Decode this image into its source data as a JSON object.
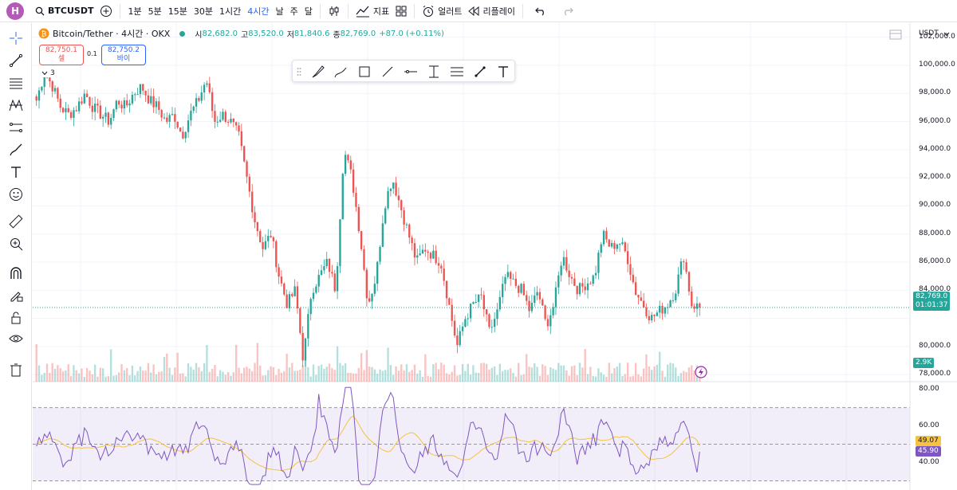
{
  "topbar": {
    "avatar_letter": "H",
    "symbol": "BTCUSDT",
    "intervals": [
      "1분",
      "5분",
      "15분",
      "30분",
      "1시간",
      "4시간",
      "날",
      "주",
      "달"
    ],
    "active_interval": "4시간",
    "indicators_label": "지표",
    "alert_label": "얼러트",
    "replay_label": "리플레이"
  },
  "legend": {
    "title": "Bitcoin/Tether · 4시간 · OKX",
    "open_label": "시",
    "open": "82,682.0",
    "high_label": "고",
    "high": "83,520.0",
    "low_label": "저",
    "low": "81,840.6",
    "close_label": "종",
    "close": "82,769.0",
    "change": "+87.0 (+0.11%)",
    "sell_price": "82,750.1",
    "sell_label": "셀",
    "spread": "0.1",
    "buy_price": "82,750.2",
    "buy_label": "바이",
    "collapse_count": "3"
  },
  "price_axis": {
    "currency": "USDT",
    "labels": [
      "102,000.0",
      "100,000.0",
      "98,000.0",
      "96,000.0",
      "94,000.0",
      "92,000.0",
      "90,000.0",
      "88,000.0",
      "86,000.0",
      "84,000.0",
      "80,000.0",
      "78,000.0"
    ],
    "current_price": "82,769.0",
    "countdown": "01:01:37",
    "volume_tag": "2.9K"
  },
  "rsi_axis": {
    "labels": [
      "80.00",
      "60.00",
      "40.00"
    ],
    "rsi_ma_value": "49.07",
    "rsi_value": "45.90"
  },
  "colors": {
    "up": "#26a69a",
    "down": "#ef5350",
    "rsi_line": "#7e57c2",
    "rsi_ma": "#f5c242",
    "accent": "#2962ff"
  },
  "chart_data": {
    "type": "candlestick",
    "symbol": "Bitcoin/Tether",
    "interval": "4시간",
    "exchange": "OKX",
    "ylim": [
      77500,
      103000
    ],
    "close_path": [
      97500,
      99500,
      98500,
      97000,
      96500,
      97000,
      98000,
      97000,
      96500,
      96000,
      97500,
      97000,
      98000,
      98500,
      97500,
      97000,
      96000,
      96500,
      95000,
      96500,
      97500,
      99000,
      96000,
      96500,
      96000,
      95000,
      92000,
      89000,
      87000,
      88000,
      85000,
      83000,
      84000,
      79000,
      84000,
      85000,
      86000,
      84000,
      94000,
      92000,
      88000,
      83000,
      85000,
      90000,
      92000,
      90000,
      88000,
      86000,
      87000,
      86500,
      86000,
      83000,
      80000,
      82000,
      83000,
      83500,
      81000,
      82500,
      85000,
      84500,
      84000,
      82500,
      84000,
      81500,
      83000,
      86500,
      85000,
      84000,
      84500,
      85000,
      88000,
      87000,
      87500,
      86500,
      84000,
      83000,
      82000,
      82500,
      83000,
      84000,
      86500,
      83000,
      82769
    ],
    "volume_tag": "2.9K",
    "rsi": {
      "levels": [
        70,
        50,
        30
      ],
      "ylim": [
        25,
        82
      ],
      "current": 45.9,
      "ma_current": 49.07
    }
  }
}
